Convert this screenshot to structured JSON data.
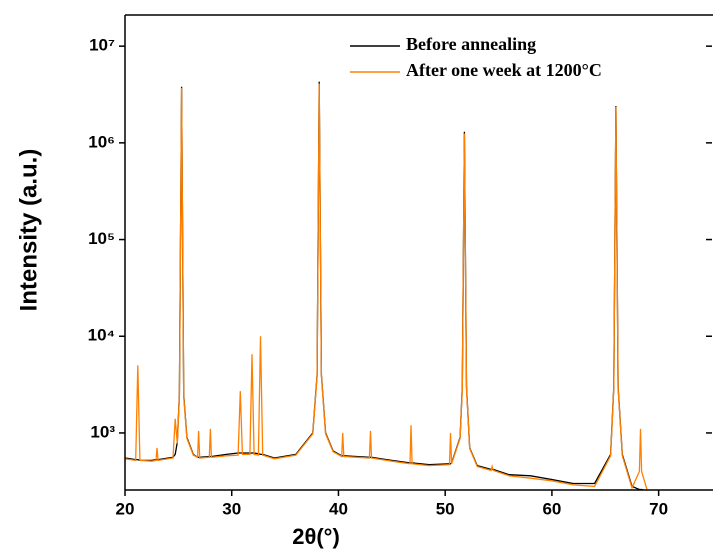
{
  "chart_data": {
    "type": "line",
    "xlabel": "2θ(°)",
    "ylabel": "Intensity (a.u.)",
    "x": [
      20,
      21.0,
      21.2,
      21.4,
      22.5,
      22.9,
      23.0,
      23.1,
      24.5,
      24.7,
      24.9,
      25.1,
      25.3,
      25.5,
      25.8,
      26.4,
      26.8,
      26.9,
      27.0,
      27.9,
      28.0,
      28.1,
      29.5,
      30.6,
      30.8,
      31.0,
      31.7,
      31.9,
      32.1,
      32.5,
      32.7,
      32.9,
      34,
      36,
      37.6,
      38.0,
      38.2,
      38.4,
      38.8,
      39.5,
      40.3,
      40.4,
      40.5,
      42.9,
      43.0,
      43.1,
      45,
      46.7,
      46.8,
      46.9,
      48.5,
      50.4,
      50.5,
      50.6,
      51.4,
      51.6,
      51.8,
      52.0,
      52.3,
      53,
      54.3,
      54.4,
      54.5,
      56,
      58,
      60,
      62,
      64,
      65.5,
      65.8,
      66.0,
      66.2,
      66.6,
      67.5,
      68.2,
      68.3,
      68.4,
      69,
      70,
      72,
      75
    ],
    "series": [
      {
        "name": "Before annealing",
        "color": "#000000",
        "values": [
          550,
          530,
          530,
          520,
          520,
          530,
          530,
          530,
          560,
          600,
          800,
          2500,
          3800000,
          2500,
          900,
          600,
          560,
          560,
          560,
          570,
          570,
          570,
          600,
          620,
          620,
          620,
          620,
          620,
          620,
          610,
          600,
          600,
          550,
          600,
          1000,
          4000,
          4300000,
          4000,
          1000,
          650,
          580,
          580,
          580,
          560,
          560,
          560,
          520,
          490,
          490,
          490,
          470,
          480,
          480,
          490,
          900,
          3000,
          1300000,
          3000,
          700,
          460,
          420,
          420,
          420,
          370,
          360,
          330,
          300,
          300,
          600,
          3000,
          2400000,
          3000,
          600,
          280,
          260,
          260,
          260,
          250,
          245,
          235,
          230
        ]
      },
      {
        "name": "After one week at 1200°C",
        "color": "#ff8000",
        "values": [
          540,
          520,
          5000,
          520,
          510,
          520,
          700,
          520,
          550,
          1400,
          780,
          2400,
          3700000,
          2400,
          880,
          590,
          560,
          1050,
          550,
          560,
          1100,
          560,
          580,
          590,
          2700,
          600,
          600,
          6500,
          600,
          590,
          10000,
          590,
          540,
          590,
          980,
          3900,
          4100000,
          3900,
          980,
          640,
          570,
          1000,
          570,
          550,
          1050,
          550,
          510,
          480,
          1200,
          480,
          460,
          470,
          1000,
          480,
          880,
          2900,
          1250000,
          2900,
          690,
          450,
          410,
          450,
          410,
          360,
          340,
          320,
          290,
          280,
          580,
          2900,
          2350000,
          2900,
          580,
          270,
          400,
          1100,
          400,
          240,
          235,
          230,
          228
        ]
      }
    ],
    "xlim": [
      20,
      75
    ],
    "xticks": [
      20,
      30,
      40,
      50,
      60,
      70
    ],
    "ylim": [
      257,
      21000000
    ],
    "log_y": true,
    "yticks": [
      {
        "value": 1000,
        "label": "10³"
      },
      {
        "value": 10000,
        "label": "10⁴"
      },
      {
        "value": 100000,
        "label": "10⁵"
      },
      {
        "value": 1000000,
        "label": "10⁶"
      },
      {
        "value": 10000000,
        "label": "10⁷"
      }
    ],
    "legend": "upper right"
  }
}
